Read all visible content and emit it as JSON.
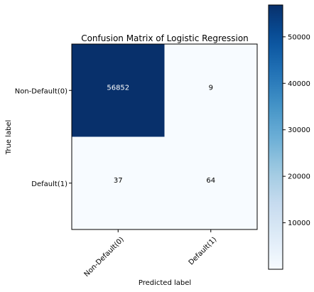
{
  "chart_data": {
    "type": "heatmap",
    "title": "Confusion Matrix of Logistic Regression",
    "xlabel": "Predicted label",
    "ylabel": "True label",
    "x_categories": [
      "Non-Default(0)",
      "Default(1)"
    ],
    "y_categories": [
      "Non-Default(0)",
      "Default(1)"
    ],
    "values": [
      [
        56852,
        9
      ],
      [
        37,
        64
      ]
    ],
    "colormap": "Blues",
    "color_range": [
      0,
      56852
    ],
    "colorbar_ticks": [
      10000,
      20000,
      30000,
      40000,
      50000
    ],
    "colorbar_tick_labels": [
      "10000",
      "20000",
      "30000",
      "40000",
      "50000"
    ],
    "grid": false
  }
}
